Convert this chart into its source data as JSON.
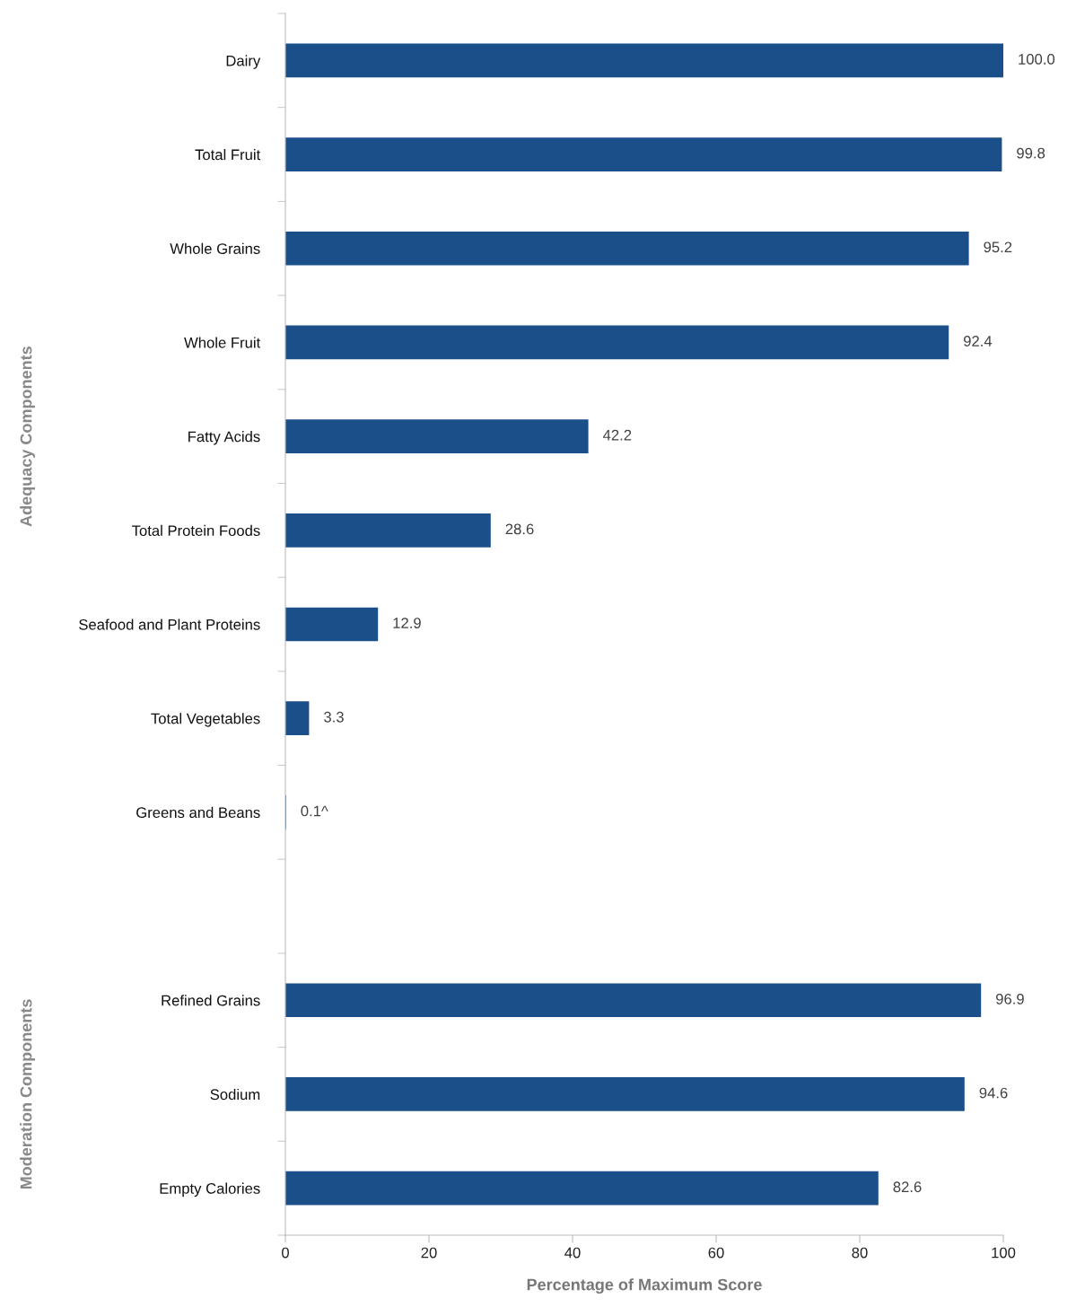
{
  "chart_data": {
    "type": "bar",
    "orientation": "horizontal",
    "xlabel": "Percentage of Maximum Score",
    "categories": [
      "Dairy",
      "Total Fruit",
      "Whole Grains",
      "Whole Fruit",
      "Fatty Acids",
      "Total Protein Foods",
      "Seafood and Plant Proteins",
      "Total Vegetables",
      "Greens and Beans",
      null,
      "Refined Grains",
      "Sodium",
      "Empty Calories"
    ],
    "values": [
      100.0,
      99.8,
      95.2,
      92.4,
      42.2,
      28.6,
      12.9,
      3.3,
      0.1,
      null,
      96.9,
      94.6,
      82.6
    ],
    "value_labels": [
      "100.0",
      "99.8",
      "95.2",
      "92.4",
      "42.2",
      "28.6",
      "12.9",
      "3.3",
      "0.1^",
      null,
      "96.9",
      "94.6",
      "82.6"
    ],
    "color": "#1b4f8a",
    "xlim": [
      0,
      100
    ],
    "xticks": [
      0,
      20,
      40,
      60,
      80,
      100
    ],
    "grid": false,
    "legend": false,
    "annotations": [
      "Adequacy Components",
      "Moderation Components"
    ]
  }
}
